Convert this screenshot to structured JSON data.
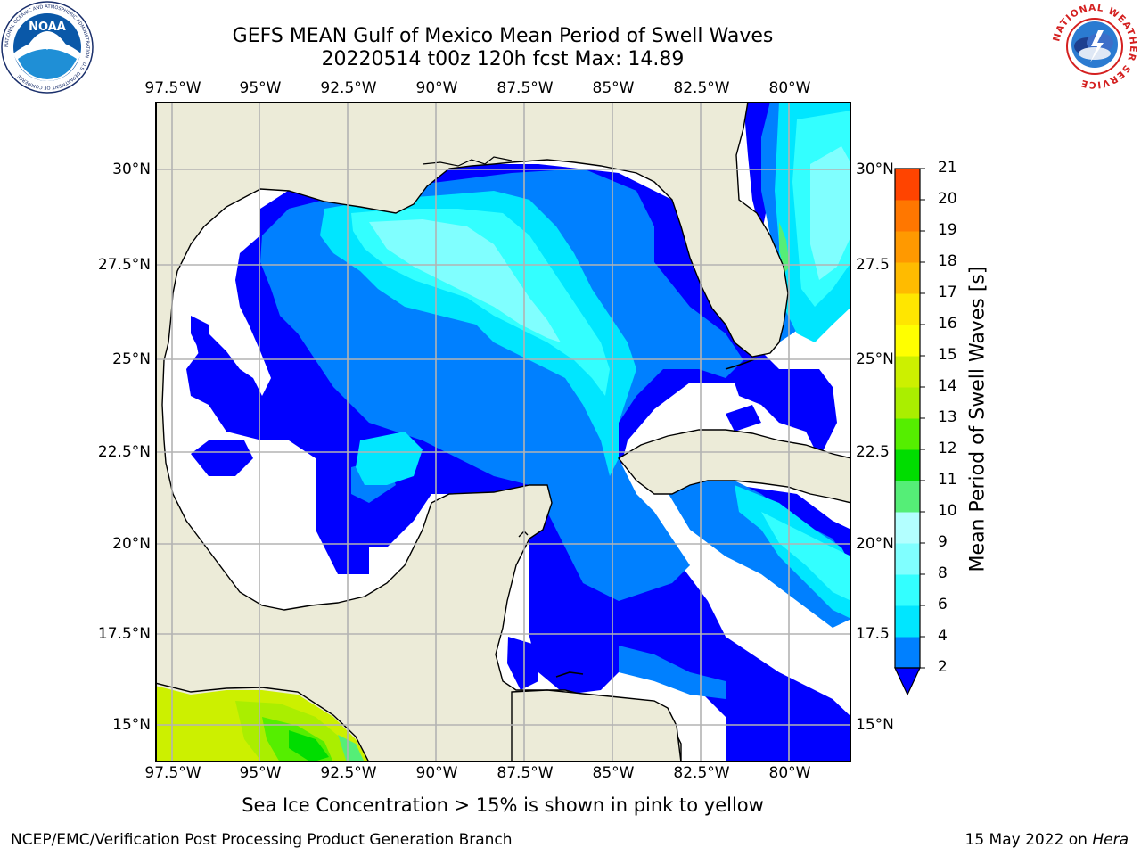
{
  "header": {
    "title_line1": "GEFS MEAN Gulf of Mexico Mean Period of Swell Waves",
    "title_line2": "20220514 t00z 120h fcst   Max: 14.89"
  },
  "logos": {
    "left": {
      "name": "noaa-logo",
      "text": "NOAA",
      "ring_text": "NATIONAL OCEANIC AND ATMOSPHERIC ADMINISTRATION · U.S. DEPARTMENT OF COMMERCE"
    },
    "right": {
      "name": "nws-logo",
      "ring_text": "NATIONAL WEATHER SERVICE"
    }
  },
  "map": {
    "lon_labels": [
      "97.5°W",
      "95°W",
      "92.5°W",
      "90°W",
      "87.5°W",
      "85°W",
      "82.5°W",
      "80°W"
    ],
    "lat_labels_left": [
      "30°N",
      "27.5°N",
      "25°N",
      "22.5°N",
      "20°N",
      "17.5°N",
      "15°N"
    ],
    "lat_labels_right": [
      "30°N",
      "27.5",
      "25°N",
      "22.5",
      "20°N",
      "17.5",
      "15°N"
    ],
    "colors": {
      "land": "#ecebd8",
      "sea_blank": "#ffffff",
      "grid": "#b3b3b3",
      "coast": "#000000"
    }
  },
  "colorbar": {
    "title": "Mean Period of Swell Waves [s]",
    "tick_labels": [
      "2",
      "4",
      "6",
      "8",
      "9",
      "10",
      "11",
      "12",
      "13",
      "14",
      "15",
      "16",
      "17",
      "18",
      "19",
      "20",
      "21"
    ],
    "colors": [
      "#0080ff",
      "#00e6ff",
      "#33ffff",
      "#80ffff",
      "#b3ffff",
      "#55ee77",
      "#00dd00",
      "#55ee00",
      "#aaee00",
      "#ccf000",
      "#ffff00",
      "#ffe600",
      "#ffbb00",
      "#ff9900",
      "#ff7700",
      "#ff4400",
      "#ff1100"
    ],
    "under_color": "#0000ff"
  },
  "note": "Sea Ice Concentration > 15% is shown in pink to yellow",
  "footer": {
    "left": "NCEP/EMC/Verification Post Processing Product Generation Branch",
    "right_date": "15 May 2022 on ",
    "right_host": "Hera"
  }
}
